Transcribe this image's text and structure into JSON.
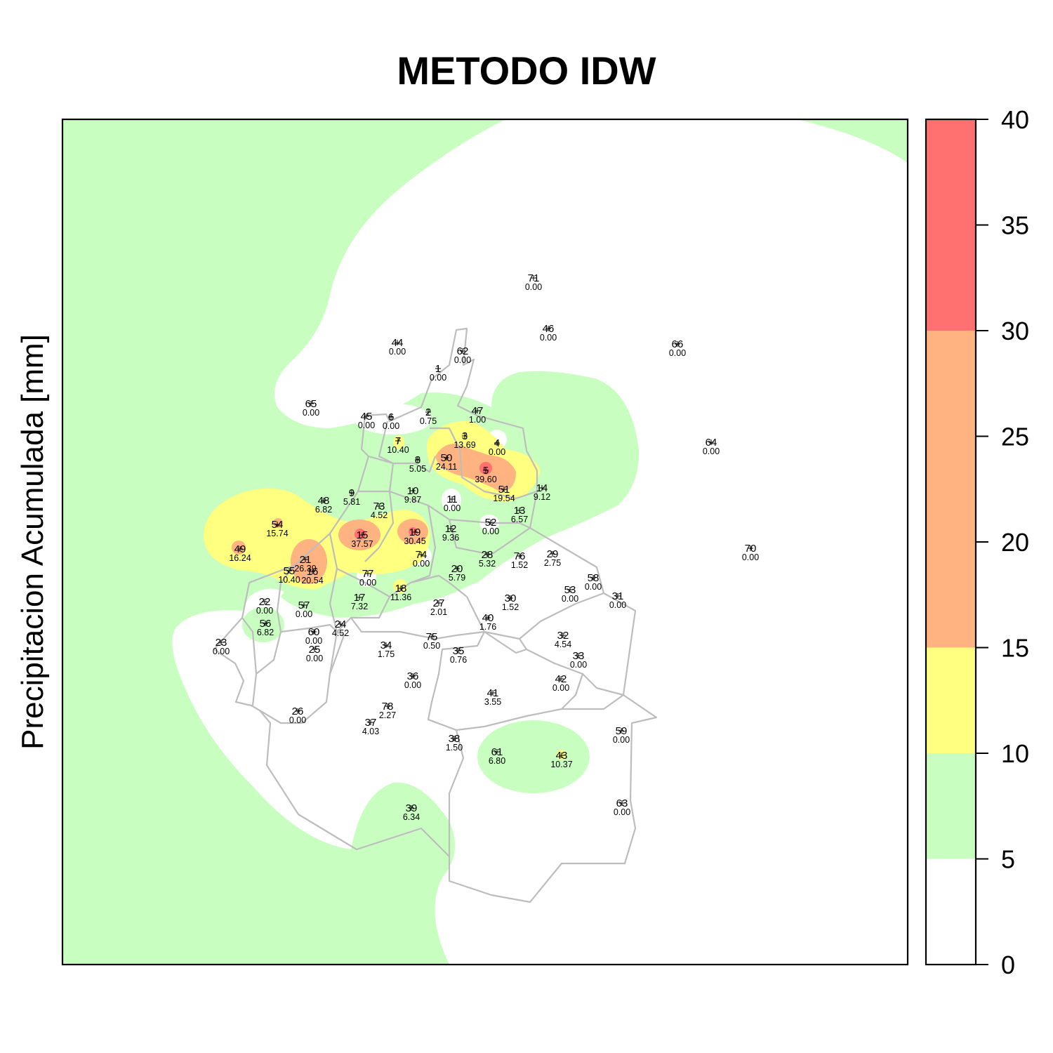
{
  "title": "METODO IDW",
  "ylabel": "Precipitacion Acumulada [mm]",
  "legend": {
    "ticks": [
      "0",
      "5",
      "10",
      "15",
      "20",
      "25",
      "30",
      "35",
      "40"
    ],
    "classes": [
      {
        "min": 0,
        "max": 5,
        "color": "#ffffff"
      },
      {
        "min": 5,
        "max": 10,
        "color": "#c8ffc0"
      },
      {
        "min": 10,
        "max": 15,
        "color": "#ffff80"
      },
      {
        "min": 15,
        "max": 30,
        "color": "#ffb380"
      },
      {
        "min": 30,
        "max": 40,
        "color": "#ff7070"
      }
    ]
  },
  "stations": [
    {
      "id": "71",
      "value": "0.00"
    },
    {
      "id": "46",
      "value": "0.00"
    },
    {
      "id": "66",
      "value": "0.00"
    },
    {
      "id": "44",
      "value": "0.00"
    },
    {
      "id": "62",
      "value": "0.00"
    },
    {
      "id": "1",
      "value": "0.00"
    },
    {
      "id": "65",
      "value": "0.00"
    },
    {
      "id": "45",
      "value": "0.00"
    },
    {
      "id": "6",
      "value": "0.00"
    },
    {
      "id": "2",
      "value": "0.75"
    },
    {
      "id": "47",
      "value": "1.00"
    },
    {
      "id": "64",
      "value": "0.00"
    },
    {
      "id": "7",
      "value": "10.40"
    },
    {
      "id": "3",
      "value": "13.69"
    },
    {
      "id": "4",
      "value": "0.00"
    },
    {
      "id": "8",
      "value": "5.05"
    },
    {
      "id": "50",
      "value": "24.11"
    },
    {
      "id": "5",
      "value": "39.60"
    },
    {
      "id": "51",
      "value": "19.54"
    },
    {
      "id": "14",
      "value": "9.12"
    },
    {
      "id": "48",
      "value": "6.82"
    },
    {
      "id": "9",
      "value": "5.81"
    },
    {
      "id": "10",
      "value": "9.87"
    },
    {
      "id": "73",
      "value": "4.52"
    },
    {
      "id": "11",
      "value": "0.00"
    },
    {
      "id": "13",
      "value": "6.57"
    },
    {
      "id": "54",
      "value": "15.74"
    },
    {
      "id": "52",
      "value": "0.00"
    },
    {
      "id": "12",
      "value": "9.36"
    },
    {
      "id": "15",
      "value": "37.57"
    },
    {
      "id": "19",
      "value": "30.45"
    },
    {
      "id": "49",
      "value": "16.24"
    },
    {
      "id": "70",
      "value": "0.00"
    },
    {
      "id": "28",
      "value": "5.32"
    },
    {
      "id": "76",
      "value": "1.52"
    },
    {
      "id": "29",
      "value": "2.75"
    },
    {
      "id": "74",
      "value": "0.00"
    },
    {
      "id": "21",
      "value": "26.39"
    },
    {
      "id": "55",
      "value": "10.40"
    },
    {
      "id": "16",
      "value": "20.54"
    },
    {
      "id": "20",
      "value": "5.79"
    },
    {
      "id": "77",
      "value": "0.00"
    },
    {
      "id": "58",
      "value": "0.00"
    },
    {
      "id": "53",
      "value": "0.00"
    },
    {
      "id": "18",
      "value": "11.36"
    },
    {
      "id": "31",
      "value": "0.00"
    },
    {
      "id": "30",
      "value": "1.52"
    },
    {
      "id": "22",
      "value": "0.00"
    },
    {
      "id": "17",
      "value": "7.32"
    },
    {
      "id": "27",
      "value": "2.01"
    },
    {
      "id": "57",
      "value": "0.00"
    },
    {
      "id": "56",
      "value": "6.82"
    },
    {
      "id": "40",
      "value": "1.76"
    },
    {
      "id": "24",
      "value": "4.52"
    },
    {
      "id": "60",
      "value": "0.00"
    },
    {
      "id": "32",
      "value": "4.54"
    },
    {
      "id": "23",
      "value": "0.00"
    },
    {
      "id": "75",
      "value": "0.50"
    },
    {
      "id": "34",
      "value": "1.75"
    },
    {
      "id": "25",
      "value": "0.00"
    },
    {
      "id": "35",
      "value": "0.76"
    },
    {
      "id": "33",
      "value": "0.00"
    },
    {
      "id": "36",
      "value": "0.00"
    },
    {
      "id": "42",
      "value": "0.00"
    },
    {
      "id": "41",
      "value": "3.55"
    },
    {
      "id": "78",
      "value": "2.27"
    },
    {
      "id": "26",
      "value": "0.00"
    },
    {
      "id": "37",
      "value": "4.03"
    },
    {
      "id": "59",
      "value": "0.00"
    },
    {
      "id": "38",
      "value": "1.50"
    },
    {
      "id": "61",
      "value": "6.80"
    },
    {
      "id": "43",
      "value": "10.37"
    },
    {
      "id": "63",
      "value": "0.00"
    },
    {
      "id": "39",
      "value": "6.34"
    }
  ]
}
